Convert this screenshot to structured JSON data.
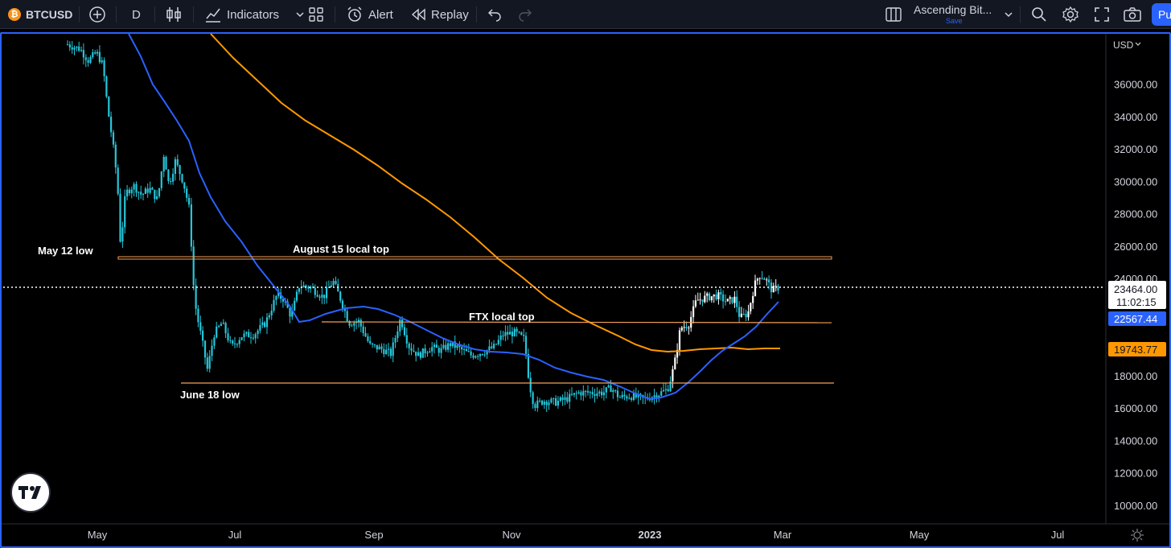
{
  "toolbar": {
    "symbol": "BTCUSD",
    "symbol_icon": "bitcoin-icon",
    "add_icon": "plus-circle-icon",
    "interval": "D",
    "bar_type_icon": "candles-icon",
    "indicators_label": "Indicators",
    "indicators_icon": "indicators-icon",
    "templates_icon": "grid-icon",
    "alert_label": "Alert",
    "alert_icon": "alarm-icon",
    "replay_label": "Replay",
    "replay_icon": "rewind-icon",
    "undo_icon": "undo-icon",
    "redo_icon": "redo-icon",
    "layout_icon": "layout-columns-icon",
    "layout_name": "Ascending Bit...",
    "layout_save": "Save",
    "search_icon": "search-icon",
    "settings_icon": "gear-icon",
    "fullscreen_icon": "fullscreen-icon",
    "snapshot_icon": "camera-icon",
    "publish_label": "Pu"
  },
  "chart": {
    "currency_label": "USD",
    "price_ticks": [
      "36000.00",
      "34000.00",
      "32000.00",
      "30000.00",
      "28000.00",
      "26000.00",
      "24000.00",
      "18000.00",
      "16000.00",
      "14000.00",
      "12000.00",
      "10000.00"
    ],
    "time_ticks": [
      "May",
      "Jul",
      "Sep",
      "Nov",
      "2023",
      "Mar",
      "May",
      "Jul"
    ],
    "last_price": "23464.00",
    "countdown": "11:02:15",
    "ma_fast_value": "22567.44",
    "ma_slow_value": "19743.77",
    "annotations": {
      "may12": "May 12 low",
      "aug15": "August 15 local top",
      "ftx": "FTX local top",
      "jun18": "June 18 low"
    },
    "colors": {
      "candle": "#26c6da",
      "candle_white": "#ffffff",
      "ma_fast": "#2962ff",
      "ma_slow": "#ff9800",
      "hline": "#f5a15a",
      "price_label_bg": "#2962ff",
      "slow_label_bg": "#ff9800"
    },
    "logo": "tradingview-logo",
    "settings_icon": "gear-icon"
  }
}
